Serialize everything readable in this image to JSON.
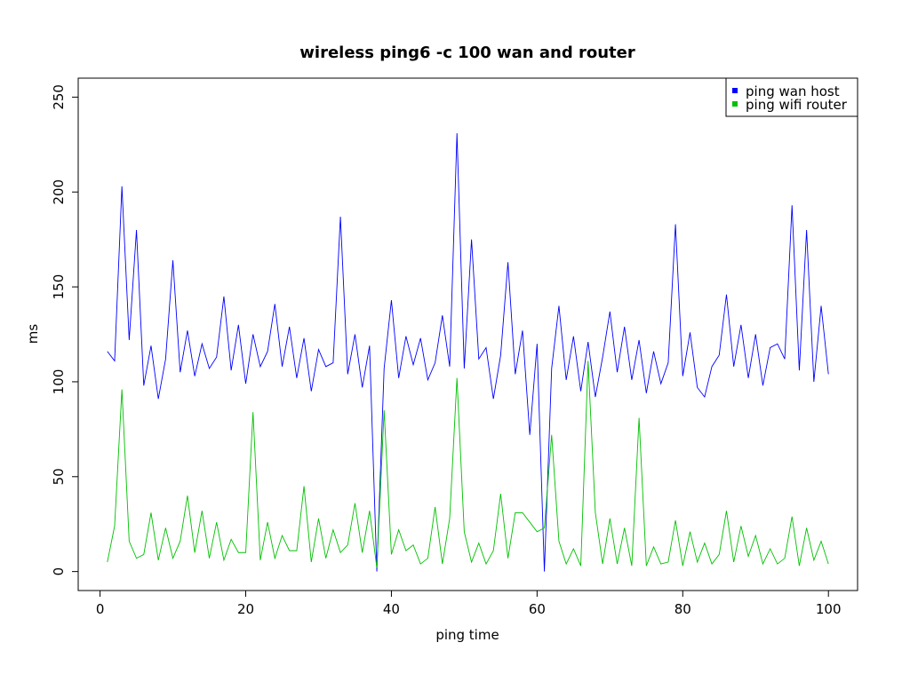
{
  "chart_data": {
    "type": "line",
    "title": "wireless ping6 -c 100 wan and router",
    "xlabel": "ping time",
    "ylabel": "ms",
    "xlim": [
      -3,
      104
    ],
    "ylim": [
      -10,
      260
    ],
    "xticks": [
      0,
      20,
      40,
      60,
      80,
      100
    ],
    "yticks": [
      0,
      50,
      100,
      150,
      200,
      250
    ],
    "legend_position": "top-right",
    "grid": false,
    "series": [
      {
        "name": "ping wan host",
        "color": "#0000ff",
        "x": [
          1,
          2,
          3,
          4,
          5,
          6,
          7,
          8,
          9,
          10,
          11,
          12,
          13,
          14,
          15,
          16,
          17,
          18,
          19,
          20,
          21,
          22,
          23,
          24,
          25,
          26,
          27,
          28,
          29,
          30,
          31,
          32,
          33,
          34,
          35,
          36,
          37,
          38,
          39,
          40,
          41,
          42,
          43,
          44,
          45,
          46,
          47,
          48,
          49,
          50,
          51,
          52,
          53,
          54,
          55,
          56,
          57,
          58,
          59,
          60,
          61,
          62,
          63,
          64,
          65,
          66,
          67,
          68,
          69,
          70,
          71,
          72,
          73,
          74,
          75,
          76,
          77,
          78,
          79,
          80,
          81,
          82,
          83,
          84,
          85,
          86,
          87,
          88,
          89,
          90,
          91,
          92,
          93,
          94,
          95,
          96,
          97,
          98,
          99,
          100
        ],
        "values": [
          116,
          111,
          203,
          122,
          180,
          98,
          119,
          91,
          112,
          164,
          105,
          127,
          103,
          120,
          107,
          113,
          145,
          106,
          130,
          99,
          125,
          108,
          116,
          141,
          108,
          129,
          102,
          123,
          95,
          117,
          108,
          110,
          187,
          104,
          125,
          97,
          119,
          0,
          107,
          143,
          102,
          124,
          109,
          123,
          101,
          110,
          135,
          108,
          231,
          107,
          175,
          112,
          118,
          91,
          114,
          163,
          104,
          127,
          72,
          120,
          0,
          107,
          140,
          101,
          124,
          95,
          121,
          92,
          113,
          137,
          105,
          129,
          101,
          122,
          94,
          116,
          99,
          110,
          183,
          103,
          126,
          97,
          92,
          108,
          114,
          146,
          108,
          130,
          102,
          125,
          98,
          118,
          120,
          112,
          193,
          106,
          180,
          100,
          140,
          104
        ]
      },
      {
        "name": "ping wifi router",
        "color": "#00c000",
        "x": [
          1,
          2,
          3,
          4,
          5,
          6,
          7,
          8,
          9,
          10,
          11,
          12,
          13,
          14,
          15,
          16,
          17,
          18,
          19,
          20,
          21,
          22,
          23,
          24,
          25,
          26,
          27,
          28,
          29,
          30,
          31,
          32,
          33,
          34,
          35,
          36,
          37,
          38,
          39,
          40,
          41,
          42,
          43,
          44,
          45,
          46,
          47,
          48,
          49,
          50,
          51,
          52,
          53,
          54,
          55,
          56,
          57,
          58,
          59,
          60,
          61,
          62,
          63,
          64,
          65,
          66,
          67,
          68,
          69,
          70,
          71,
          72,
          73,
          74,
          75,
          76,
          77,
          78,
          79,
          80,
          81,
          82,
          83,
          84,
          85,
          86,
          87,
          88,
          89,
          90,
          91,
          92,
          93,
          94,
          95,
          96,
          97,
          98,
          99,
          100
        ],
        "values": [
          5,
          24,
          96,
          16,
          7,
          9,
          31,
          6,
          23,
          7,
          16,
          40,
          10,
          32,
          7,
          26,
          6,
          17,
          10,
          10,
          84,
          6,
          26,
          7,
          19,
          11,
          11,
          45,
          5,
          28,
          7,
          22,
          10,
          14,
          36,
          10,
          32,
          2,
          85,
          9,
          22,
          11,
          14,
          4,
          7,
          34,
          4,
          28,
          102,
          21,
          5,
          15,
          4,
          11,
          41,
          7,
          31,
          31,
          26,
          21,
          23,
          72,
          16,
          4,
          12,
          3,
          111,
          31,
          4,
          28,
          4,
          23,
          3,
          81,
          3,
          13,
          4,
          5,
          27,
          3,
          21,
          5,
          15,
          4,
          9,
          32,
          5,
          24,
          8,
          19,
          4,
          12,
          4,
          7,
          29,
          3,
          23,
          6,
          16,
          4
        ]
      }
    ]
  }
}
